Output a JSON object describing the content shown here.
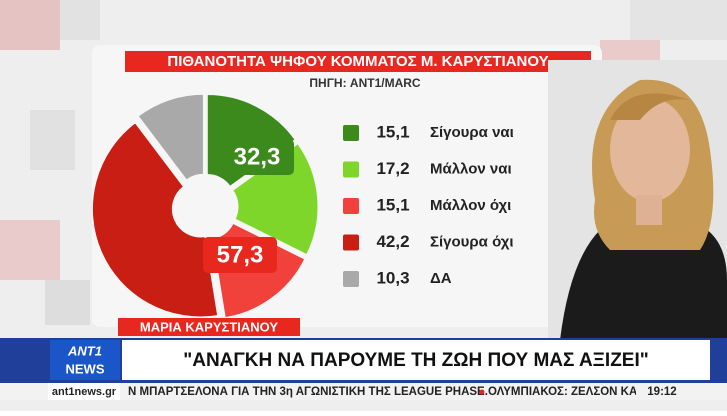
{
  "chart_data": {
    "type": "donut",
    "title": "ΠΙΘΑΝΟΤΗΤΑ ΨΗΦΟΥ ΚΟΜΜΑΤΟΣ Μ. ΚΑΡΥΣΤΙΑΝΟΥ",
    "subtitle": "ΠΗΓΗ: ANT1/MARC",
    "categories": [
      "Σίγουρα ναι",
      "Μάλλον ναι",
      "Μάλλον όχι",
      "Σίγουρα όχι",
      "ΔΑ"
    ],
    "values": [
      15.1,
      17.2,
      15.1,
      42.2,
      10.3
    ],
    "value_labels": [
      "15,1",
      "17,2",
      "15,1",
      "42,2",
      "10,3"
    ],
    "colors": [
      "#3d8a1c",
      "#7fd62a",
      "#f0413a",
      "#c81e14",
      "#a9a9a9"
    ],
    "group_labels": [
      {
        "value": 32.3,
        "label": "32,3",
        "color": "#3d8a1c"
      },
      {
        "value": 57.3,
        "label": "57,3",
        "color": "#e8281e"
      }
    ]
  },
  "broadcast": {
    "name_strap": "ΜΑΡΙΑ ΚΑΡΥΣΤΙΑΝΟΥ",
    "headline": "\"ΑΝΑΓΚΗ ΝΑ ΠΑΡΟΥΜΕ ΤΗ ΖΩΗ ΠΟΥ ΜΑΣ ΑΞΙΖΕΙ\"",
    "logo_top": "ANT1",
    "logo_bottom": "NEWS",
    "site": "ant1news.gr",
    "ticker": [
      "Ν ΜΠΑΡΤΣΕΛΟΝΑ ΓΙΑ ΤΗΝ 3η ΑΓΩΝΙΣΤΙΚΗ ΤΗΣ LEAGUE PHASE.",
      "ΟΛΥΜΠΙΑΚΟΣ: ΖΕΛΣΟΝ ΚΑ"
    ],
    "time": "19:12"
  }
}
